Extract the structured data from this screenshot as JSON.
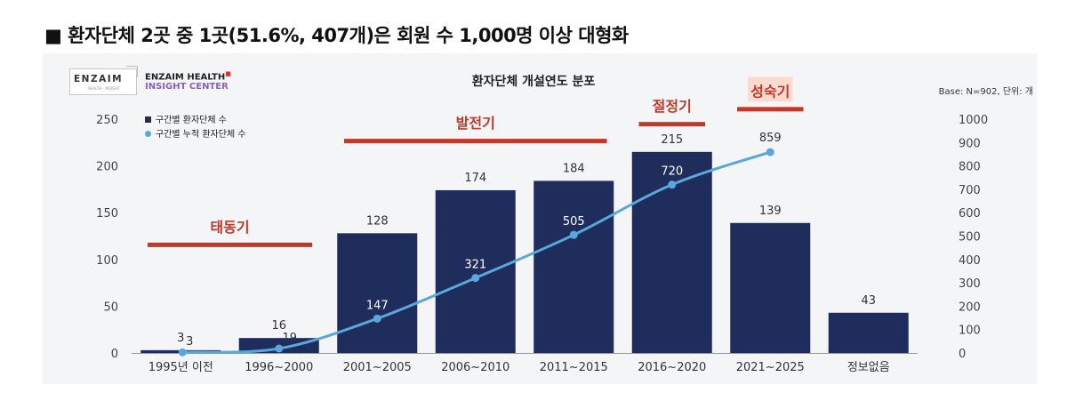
{
  "headline": "■ 환자단체 2곳 중 1곳(51.6%, 407개)은 회원 수 1,000명 이상 대형화",
  "brand": {
    "logo_text": "ENZAIM",
    "logo_sub": "HEALTH · INSIGHT",
    "line1": "ENZAIM HEALTH",
    "line1_mark": "■",
    "line2": "INSIGHT CENTER"
  },
  "colors": {
    "bar": "#1f2d5c",
    "line": "#5aa7dc",
    "phase": "#c0392b",
    "phase_highlight_bg": "#fadbd0",
    "text": "#333333"
  },
  "chart_data": {
    "type": "bar",
    "title": "환자단체 개설연도 분포",
    "note": "Base: N=902, 단위: 개",
    "categories": [
      "1995년 이전",
      "1996~2000",
      "2001~2005",
      "2006~2010",
      "2011~2015",
      "2016~2020",
      "2021~2025",
      "정보없음"
    ],
    "series": [
      {
        "name": "구간별 환자단체 수",
        "type": "bar",
        "axis": "left",
        "values": [
          3,
          16,
          128,
          174,
          184,
          215,
          139,
          43
        ]
      },
      {
        "name": "구간별 누적 환자단체 수",
        "type": "line",
        "axis": "right",
        "values": [
          3,
          19,
          147,
          321,
          505,
          720,
          859,
          null
        ]
      }
    ],
    "y_left": {
      "min": 0,
      "max": 250,
      "ticks": [
        0,
        50,
        100,
        150,
        200,
        250
      ]
    },
    "y_right": {
      "min": 0,
      "max": 1000,
      "ticks": [
        0,
        100,
        200,
        300,
        400,
        500,
        600,
        700,
        800,
        900,
        1000
      ]
    },
    "legend_position": "top-left",
    "grid": false,
    "phases": [
      {
        "label": "태동기",
        "from": 0,
        "to": 1,
        "level": 118,
        "highlight": false
      },
      {
        "label": "발전기",
        "from": 2,
        "to": 4,
        "level": 229,
        "highlight": false
      },
      {
        "label": "절정기",
        "from": 5,
        "to": 5,
        "level": 247,
        "highlight": false
      },
      {
        "label": "성숙기",
        "from": 6,
        "to": 6,
        "level": 263,
        "highlight": true
      }
    ]
  }
}
